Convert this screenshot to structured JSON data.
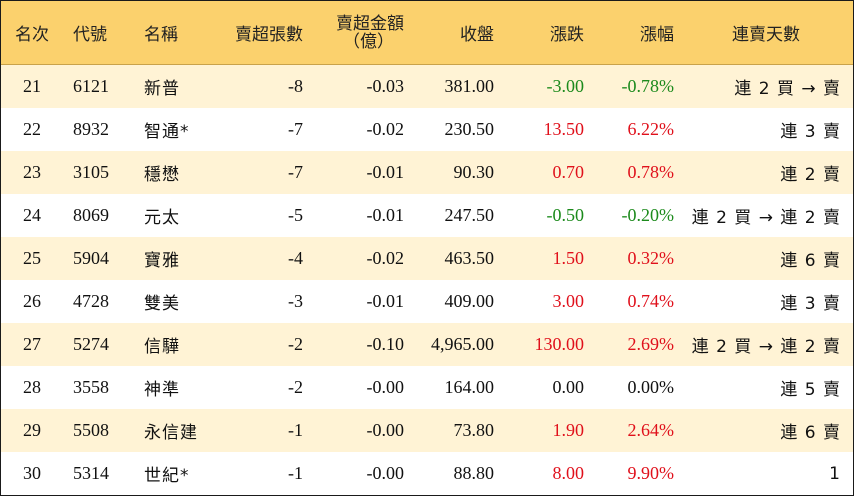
{
  "colors": {
    "header_bg": "#fbd16d",
    "row_alt_bg": "#fff3d5",
    "row_bg": "#ffffff",
    "up": "#e0101b",
    "down": "#1c8a1c",
    "flat": "#111111"
  },
  "header": {
    "rank": "名次",
    "code": "代號",
    "name": "名稱",
    "net_sell_lots": "賣超張數",
    "net_sell_amount_line1": "賣超金額",
    "net_sell_amount_line2": "（億）",
    "close": "收盤",
    "change": "漲跌",
    "change_pct": "漲幅",
    "consecutive_days": "連賣天數"
  },
  "rows": [
    {
      "rank": "21",
      "code": "6121",
      "name": "新普",
      "lots": "-8",
      "amount": "-0.03",
      "close": "381.00",
      "change": "-3.00",
      "pct": "-0.78%",
      "direction": "down",
      "days": "連 2 買 → 賣"
    },
    {
      "rank": "22",
      "code": "8932",
      "name": "智通*",
      "lots": "-7",
      "amount": "-0.02",
      "close": "230.50",
      "change": "13.50",
      "pct": "6.22%",
      "direction": "up",
      "days": "連 3 賣"
    },
    {
      "rank": "23",
      "code": "3105",
      "name": "穩懋",
      "lots": "-7",
      "amount": "-0.01",
      "close": "90.30",
      "change": "0.70",
      "pct": "0.78%",
      "direction": "up",
      "days": "連 2 賣"
    },
    {
      "rank": "24",
      "code": "8069",
      "name": "元太",
      "lots": "-5",
      "amount": "-0.01",
      "close": "247.50",
      "change": "-0.50",
      "pct": "-0.20%",
      "direction": "down",
      "days": "連 2 買 → 連 2 賣"
    },
    {
      "rank": "25",
      "code": "5904",
      "name": "寶雅",
      "lots": "-4",
      "amount": "-0.02",
      "close": "463.50",
      "change": "1.50",
      "pct": "0.32%",
      "direction": "up",
      "days": "連 6 賣"
    },
    {
      "rank": "26",
      "code": "4728",
      "name": "雙美",
      "lots": "-3",
      "amount": "-0.01",
      "close": "409.00",
      "change": "3.00",
      "pct": "0.74%",
      "direction": "up",
      "days": "連 3 賣"
    },
    {
      "rank": "27",
      "code": "5274",
      "name": "信驊",
      "lots": "-2",
      "amount": "-0.10",
      "close": "4,965.00",
      "change": "130.00",
      "pct": "2.69%",
      "direction": "up",
      "days": "連 2 買 → 連 2 賣"
    },
    {
      "rank": "28",
      "code": "3558",
      "name": "神準",
      "lots": "-2",
      "amount": "-0.00",
      "close": "164.00",
      "change": "0.00",
      "pct": "0.00%",
      "direction": "flat",
      "days": "連 5 賣"
    },
    {
      "rank": "29",
      "code": "5508",
      "name": "永信建",
      "lots": "-1",
      "amount": "-0.00",
      "close": "73.80",
      "change": "1.90",
      "pct": "2.64%",
      "direction": "up",
      "days": "連 6 賣"
    },
    {
      "rank": "30",
      "code": "5314",
      "name": "世紀*",
      "lots": "-1",
      "amount": "-0.00",
      "close": "88.80",
      "change": "8.00",
      "pct": "9.90%",
      "direction": "up",
      "days": "1"
    }
  ]
}
